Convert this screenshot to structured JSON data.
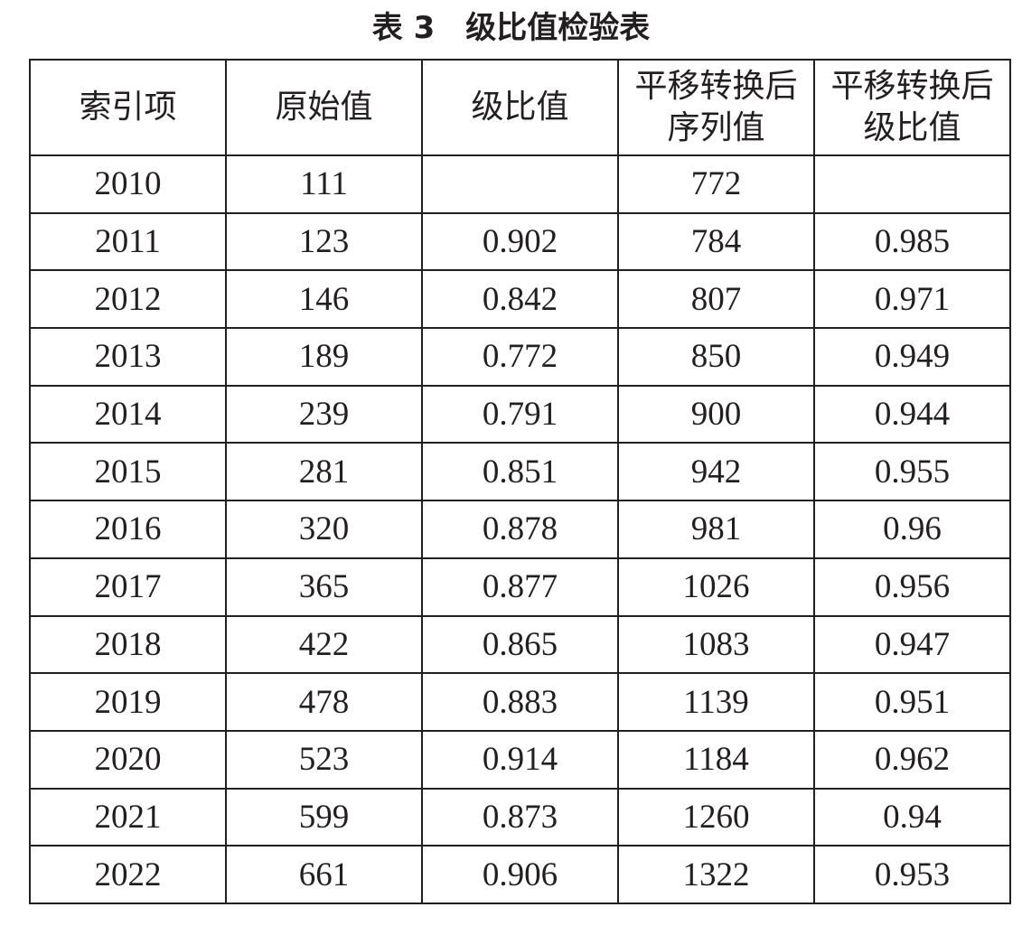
{
  "title": "表 3　级比值检验表",
  "table": {
    "header": [
      "索引项",
      "原始值",
      "级比值",
      "平移转换后\n序列值",
      "平移转换后\n级比值"
    ],
    "rows": [
      [
        2010,
        111,
        null,
        772,
        null
      ],
      [
        2011,
        123,
        0.902,
        784,
        0.985
      ],
      [
        2012,
        146,
        0.842,
        807,
        0.971
      ],
      [
        2013,
        189,
        0.772,
        850,
        0.949
      ],
      [
        2014,
        239,
        0.791,
        900,
        0.944
      ],
      [
        2015,
        281,
        0.851,
        942,
        0.955
      ],
      [
        2016,
        320,
        0.878,
        981,
        0.96
      ],
      [
        2017,
        365,
        0.877,
        1026,
        0.956
      ],
      [
        2018,
        422,
        0.865,
        1083,
        0.947
      ],
      [
        2019,
        478,
        0.883,
        1139,
        0.951
      ],
      [
        2020,
        523,
        0.914,
        1184,
        0.962
      ],
      [
        2021,
        599,
        0.873,
        1260,
        0.94
      ],
      [
        2022,
        661,
        0.906,
        1322,
        0.953
      ]
    ]
  }
}
